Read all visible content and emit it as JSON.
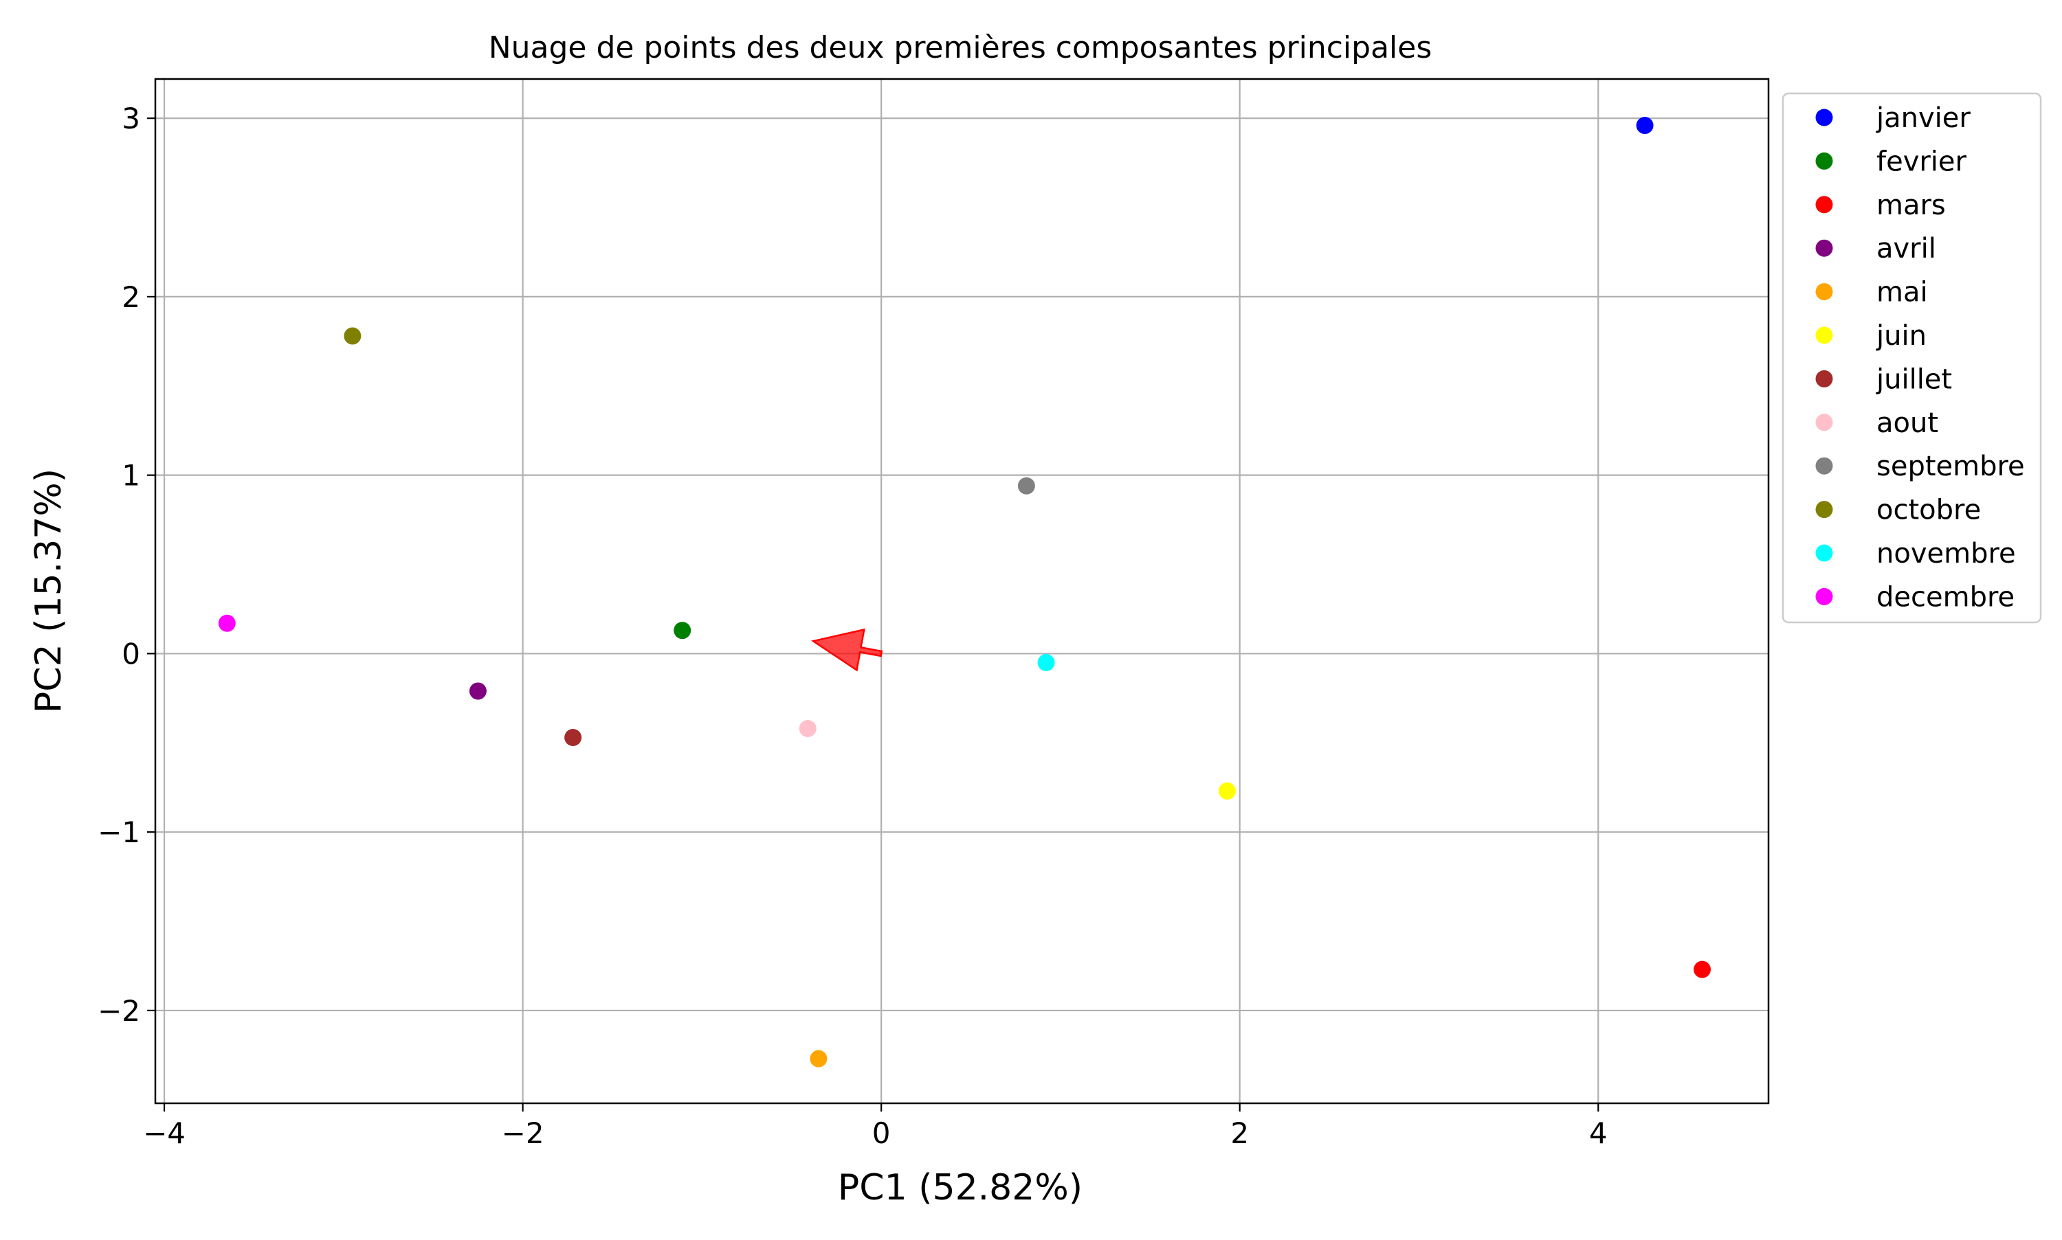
{
  "chart_data": {
    "type": "scatter",
    "title": "Nuage de points des deux premières composantes principales",
    "xlabel": "PC1 (52.82%)",
    "ylabel": "PC2 (15.37%)",
    "xlim": [
      -4.05,
      4.95
    ],
    "ylim": [
      -2.52,
      3.22
    ],
    "xticks": [
      {
        "value": -4,
        "label": "−4"
      },
      {
        "value": -2,
        "label": "−2"
      },
      {
        "value": 0,
        "label": "0"
      },
      {
        "value": 2,
        "label": "2"
      },
      {
        "value": 4,
        "label": "4"
      }
    ],
    "yticks": [
      {
        "value": -2,
        "label": "−2"
      },
      {
        "value": -1,
        "label": "−1"
      },
      {
        "value": 0,
        "label": "0"
      },
      {
        "value": 1,
        "label": "1"
      },
      {
        "value": 2,
        "label": "2"
      },
      {
        "value": 3,
        "label": "3"
      }
    ],
    "grid": true,
    "legend_position": "outside-right-top",
    "series": [
      {
        "name": "janvier",
        "color": "#0000ff",
        "x": 4.26,
        "y": 2.96
      },
      {
        "name": "fevrier",
        "color": "#008000",
        "x": -1.11,
        "y": 0.13
      },
      {
        "name": "mars",
        "color": "#ff0000",
        "x": 4.58,
        "y": -1.77
      },
      {
        "name": "avril",
        "color": "#800080",
        "x": -2.25,
        "y": -0.21
      },
      {
        "name": "mai",
        "color": "#ffa500",
        "x": -0.35,
        "y": -2.27
      },
      {
        "name": "juin",
        "color": "#ffff00",
        "x": 1.93,
        "y": -0.77
      },
      {
        "name": "juillet",
        "color": "#a52a2a",
        "x": -1.72,
        "y": -0.47
      },
      {
        "name": "aout",
        "color": "#ffc0cb",
        "x": -0.41,
        "y": -0.42
      },
      {
        "name": "septembre",
        "color": "#808080",
        "x": 0.81,
        "y": 0.94
      },
      {
        "name": "octobre",
        "color": "#808000",
        "x": -2.95,
        "y": 1.78
      },
      {
        "name": "novembre",
        "color": "#00ffff",
        "x": 0.92,
        "y": -0.05
      },
      {
        "name": "decembre",
        "color": "#ff00ff",
        "x": -3.65,
        "y": 0.17
      }
    ],
    "arrow": {
      "x_start": 0.0,
      "y_start": 0.0,
      "x_end": -0.38,
      "y_end": 0.07,
      "color": "#ff0000"
    }
  }
}
